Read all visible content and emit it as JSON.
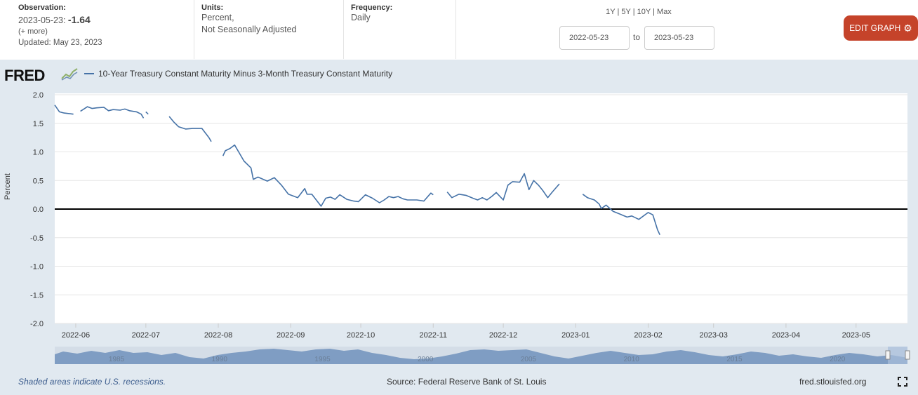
{
  "header": {
    "observation_label": "Observation:",
    "observation_date": "2023-05-23:",
    "observation_value": "-1.64",
    "more_link": "(+ more)",
    "updated": "Updated: May 23, 2023",
    "units_label": "Units:",
    "units_line1": "Percent,",
    "units_line2": "Not Seasonally Adjusted",
    "frequency_label": "Frequency:",
    "frequency_value": "Daily",
    "range_1y": "1Y",
    "range_5y": "5Y",
    "range_10y": "10Y",
    "range_max": "Max",
    "range_sep": "|",
    "date_start": "2022-05-23",
    "date_end": "2023-05-23",
    "to_label": "to",
    "edit_button": "EDIT GRAPH",
    "edit_icon": "gear-icon",
    "colors": {
      "edit_button_bg": "#c5432a",
      "frame_bg": "#e1e9f0",
      "series": "#4572a7"
    }
  },
  "logo_text": "FRED",
  "footer": {
    "recession_note": "Shaded areas indicate U.S. recessions.",
    "source": "Source: Federal Reserve Bank of St. Louis",
    "site": "fred.stlouisfed.org",
    "fullscreen_icon": "expand-icon"
  },
  "navigator": {
    "year_labels": [
      "1985",
      "1990",
      "1995",
      "2000",
      "2005",
      "2010",
      "2015",
      "2020"
    ],
    "handle_icon": "drag-handle-icon"
  },
  "chart_data": {
    "type": "line",
    "title": "",
    "legend": "10-Year Treasury Constant Maturity Minus 3-Month Treasury Constant Maturity",
    "xlabel": "",
    "ylabel": "Percent",
    "ylim": [
      -2.0,
      2.0
    ],
    "yticks": [
      "2.0",
      "1.5",
      "1.0",
      "0.5",
      "0.0",
      "-0.5",
      "-1.0",
      "-1.5",
      "-2.0"
    ],
    "xlim": [
      "2022-05-23",
      "2023-05-23"
    ],
    "xticks": [
      "2022-06",
      "2022-07",
      "2022-08",
      "2022-09",
      "2022-10",
      "2022-11",
      "2022-12",
      "2023-01",
      "2023-02",
      "2023-03",
      "2023-04",
      "2023-05"
    ],
    "grid": true,
    "zero_line": true,
    "series": [
      {
        "name": "10-Year Treasury Constant Maturity Minus 3-Month Treasury Constant Maturity",
        "segments": [
          [
            [
              "2022-05-23",
              1.82
            ],
            [
              "2022-05-25",
              1.7
            ],
            [
              "2022-05-27",
              1.68
            ],
            [
              "2022-05-31",
              1.66
            ]
          ],
          [
            [
              "2022-06-03",
              1.71
            ],
            [
              "2022-06-06",
              1.79
            ],
            [
              "2022-06-08",
              1.76
            ],
            [
              "2022-06-10",
              1.77
            ],
            [
              "2022-06-13",
              1.78
            ],
            [
              "2022-06-15",
              1.72
            ],
            [
              "2022-06-17",
              1.74
            ],
            [
              "2022-06-20",
              1.73
            ],
            [
              "2022-06-22",
              1.75
            ],
            [
              "2022-06-24",
              1.72
            ],
            [
              "2022-06-27",
              1.7
            ],
            [
              "2022-06-29",
              1.66
            ],
            [
              "2022-06-30",
              1.59
            ]
          ],
          [
            [
              "2022-07-01",
              1.7
            ],
            [
              "2022-07-02",
              1.66
            ]
          ],
          [
            [
              "2022-07-11",
              1.62
            ],
            [
              "2022-07-13",
              1.52
            ],
            [
              "2022-07-15",
              1.44
            ],
            [
              "2022-07-18",
              1.4
            ],
            [
              "2022-07-21",
              1.41
            ],
            [
              "2022-07-25",
              1.41
            ],
            [
              "2022-07-28",
              1.25
            ],
            [
              "2022-07-29",
              1.18
            ]
          ],
          [
            [
              "2022-08-03",
              0.93
            ],
            [
              "2022-08-04",
              1.02
            ],
            [
              "2022-08-06",
              1.06
            ],
            [
              "2022-08-08",
              1.12
            ],
            [
              "2022-08-10",
              0.98
            ],
            [
              "2022-08-12",
              0.84
            ],
            [
              "2022-08-15",
              0.72
            ],
            [
              "2022-08-16",
              0.52
            ],
            [
              "2022-08-18",
              0.56
            ],
            [
              "2022-08-22",
              0.49
            ],
            [
              "2022-08-25",
              0.55
            ],
            [
              "2022-08-28",
              0.42
            ],
            [
              "2022-08-31",
              0.26
            ],
            [
              "2022-09-04",
              0.2
            ],
            [
              "2022-09-07",
              0.36
            ],
            [
              "2022-09-08",
              0.26
            ],
            [
              "2022-09-10",
              0.26
            ],
            [
              "2022-09-14",
              0.05
            ],
            [
              "2022-09-16",
              0.19
            ],
            [
              "2022-09-18",
              0.21
            ],
            [
              "2022-09-20",
              0.17
            ],
            [
              "2022-09-22",
              0.25
            ],
            [
              "2022-09-25",
              0.17
            ],
            [
              "2022-09-28",
              0.14
            ],
            [
              "2022-09-30",
              0.13
            ],
            [
              "2022-10-03",
              0.25
            ],
            [
              "2022-10-06",
              0.19
            ],
            [
              "2022-10-09",
              0.11
            ],
            [
              "2022-10-11",
              0.16
            ],
            [
              "2022-10-13",
              0.22
            ],
            [
              "2022-10-15",
              0.2
            ],
            [
              "2022-10-17",
              0.22
            ],
            [
              "2022-10-19",
              0.18
            ],
            [
              "2022-10-21",
              0.16
            ],
            [
              "2022-10-25",
              0.16
            ],
            [
              "2022-10-28",
              0.14
            ],
            [
              "2022-10-31",
              0.28
            ],
            [
              "2022-11-01",
              0.25
            ]
          ],
          [
            [
              "2022-11-07",
              0.3
            ],
            [
              "2022-11-09",
              0.2
            ],
            [
              "2022-11-12",
              0.26
            ],
            [
              "2022-11-15",
              0.24
            ],
            [
              "2022-11-18",
              0.19
            ],
            [
              "2022-11-20",
              0.16
            ],
            [
              "2022-11-22",
              0.2
            ],
            [
              "2022-11-24",
              0.16
            ],
            [
              "2022-11-26",
              0.22
            ],
            [
              "2022-11-28",
              0.29
            ],
            [
              "2022-12-01",
              0.16
            ],
            [
              "2022-12-03",
              0.42
            ],
            [
              "2022-12-05",
              0.48
            ],
            [
              "2022-12-08",
              0.47
            ],
            [
              "2022-12-10",
              0.62
            ],
            [
              "2022-12-12",
              0.34
            ],
            [
              "2022-12-14",
              0.5
            ],
            [
              "2022-12-16",
              0.42
            ],
            [
              "2022-12-18",
              0.32
            ],
            [
              "2022-12-20",
              0.2
            ],
            [
              "2022-12-22",
              0.3
            ],
            [
              "2022-12-25",
              0.44
            ]
          ],
          [
            [
              "2023-01-04",
              0.26
            ],
            [
              "2023-01-06",
              0.2
            ],
            [
              "2023-01-09",
              0.16
            ],
            [
              "2023-01-11",
              0.09
            ],
            [
              "2023-01-12",
              0.01
            ],
            [
              "2023-01-14",
              0.07
            ],
            [
              "2023-01-17",
              -0.04
            ],
            [
              "2023-01-20",
              -0.09
            ],
            [
              "2023-01-23",
              -0.14
            ],
            [
              "2023-01-25",
              -0.12
            ],
            [
              "2023-01-28",
              -0.18
            ],
            [
              "2023-01-30",
              -0.12
            ],
            [
              "2023-02-01",
              -0.06
            ],
            [
              "2023-02-03",
              -0.1
            ],
            [
              "2023-02-05",
              -0.36
            ],
            [
              "2023-02-06",
              -0.45
            ]
          ]
        ]
      }
    ]
  }
}
